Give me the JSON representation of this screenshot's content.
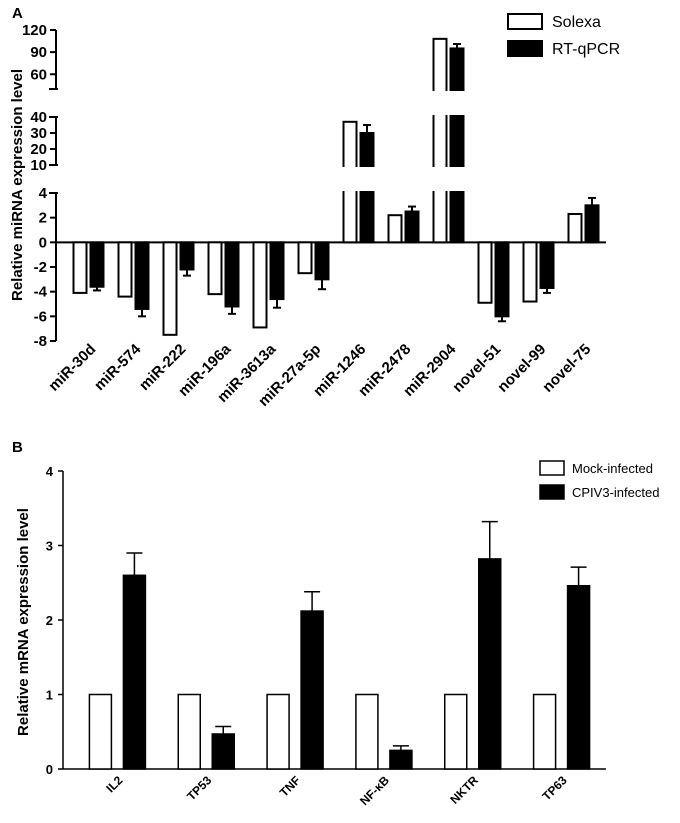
{
  "panel_labels": {
    "a": "A",
    "b": "B"
  },
  "chart_data": [
    {
      "panel": "A",
      "type": "bar",
      "ylabel": "Relative miRNA expression level",
      "y_axis_breaks": [
        {
          "ylim": [
            40,
            120
          ],
          "ticks": [
            60,
            90,
            120
          ]
        },
        {
          "ylim": [
            10,
            40
          ],
          "ticks": [
            10,
            20,
            30,
            40
          ]
        },
        {
          "ylim": [
            -8,
            4
          ],
          "ticks": [
            -8,
            -6,
            -4,
            -2,
            0,
            2,
            4
          ]
        }
      ],
      "categories": [
        "miR-30d",
        "miR-574",
        "miR-222",
        "miR-196a",
        "miR-3613a",
        "miR-27a-5p",
        "miR-1246",
        "miR-2478",
        "miR-2904",
        "novel-51",
        "novel-99",
        "novel-75"
      ],
      "series": [
        {
          "name": "Solexa",
          "fill": "#ffffff",
          "values": [
            -4.1,
            -4.4,
            -7.5,
            -4.2,
            -6.9,
            -2.5,
            37,
            2.2,
            108,
            -4.9,
            -4.8,
            2.3
          ]
        },
        {
          "name": "RT-qPCR",
          "fill": "#000000",
          "values": [
            -3.6,
            -5.4,
            -2.2,
            -5.2,
            -4.6,
            -3.0,
            30,
            2.5,
            95,
            -6.0,
            -3.7,
            3.0
          ],
          "errors": [
            0.3,
            0.6,
            0.5,
            0.6,
            0.7,
            0.8,
            5,
            0.4,
            6,
            0.4,
            0.4,
            0.6
          ]
        }
      ],
      "legend": "top-right",
      "grid": false
    },
    {
      "panel": "B",
      "type": "bar",
      "ylabel": "Relative mRNA expression level",
      "ylim": [
        0,
        4
      ],
      "ticks": [
        0,
        1,
        2,
        3,
        4
      ],
      "categories": [
        "IL2",
        "TP53",
        "TNF",
        "NF-κB",
        "NKTR",
        "TP63"
      ],
      "series": [
        {
          "name": "Mock-infected",
          "fill": "#ffffff",
          "values": [
            1,
            1,
            1,
            1,
            1,
            1
          ]
        },
        {
          "name": "CPIV3-infected",
          "fill": "#000000",
          "values": [
            2.6,
            0.47,
            2.12,
            0.25,
            2.82,
            2.46
          ],
          "errors": [
            0.3,
            0.1,
            0.26,
            0.06,
            0.5,
            0.25
          ]
        }
      ],
      "legend": "top-right",
      "grid": false
    }
  ]
}
